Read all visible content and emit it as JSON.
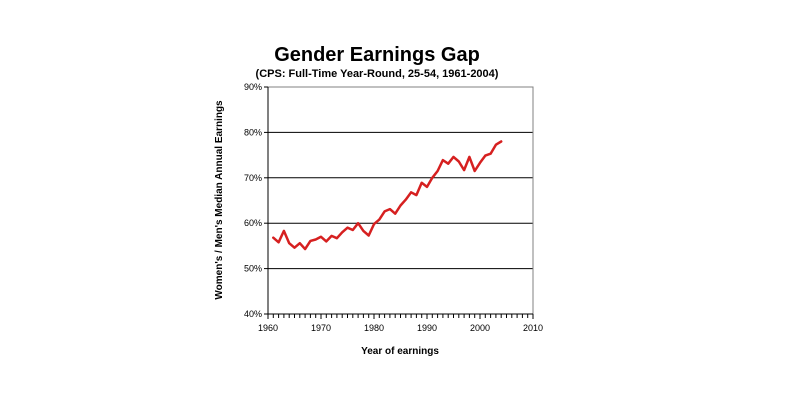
{
  "chart_data": {
    "type": "line",
    "title": "Gender Earnings Gap",
    "subtitle": "(CPS: Full-Time Year-Round, 25-54, 1961-2004)",
    "xlabel": "Year of earnings",
    "ylabel": "Women's / Men's Median Annual Earnings",
    "xlim": [
      1960,
      2010
    ],
    "ylim": [
      40,
      90
    ],
    "x_ticks": [
      1960,
      1970,
      1980,
      1990,
      2000,
      2010
    ],
    "x_tick_labels": [
      "1960",
      "1970",
      "1980",
      "1990",
      "2000",
      "2010"
    ],
    "y_ticks": [
      40,
      50,
      60,
      70,
      80,
      90
    ],
    "y_tick_labels": [
      "40%",
      "50%",
      "60%",
      "70%",
      "80%",
      "90%"
    ],
    "grid": "horizontal",
    "legend": "none",
    "line_color": "#d62020",
    "series": [
      {
        "x": [
          1961,
          1962,
          1963,
          1964,
          1965,
          1966,
          1967,
          1968,
          1969,
          1970,
          1971,
          1972,
          1973,
          1974,
          1975,
          1976,
          1977,
          1978,
          1979,
          1980,
          1981,
          1982,
          1983,
          1984,
          1985,
          1986,
          1987,
          1988,
          1989,
          1990,
          1991,
          1992,
          1993,
          1994,
          1995,
          1996,
          1997,
          1998,
          1999,
          2000,
          2001,
          2002,
          2003,
          2004
        ],
        "values": [
          56.8,
          55.8,
          58.3,
          55.6,
          54.6,
          55.6,
          54.3,
          56.1,
          56.4,
          57.0,
          56.0,
          57.2,
          56.7,
          58.0,
          59.0,
          58.5,
          60.0,
          58.3,
          57.3,
          59.8,
          60.8,
          62.6,
          63.1,
          62.1,
          63.9,
          65.2,
          66.8,
          66.2,
          68.9,
          68.0,
          70.0,
          71.5,
          73.9,
          73.1,
          74.6,
          73.6,
          71.7,
          74.6,
          71.5,
          73.3,
          74.9,
          75.3,
          77.3,
          78.0
        ]
      }
    ]
  }
}
